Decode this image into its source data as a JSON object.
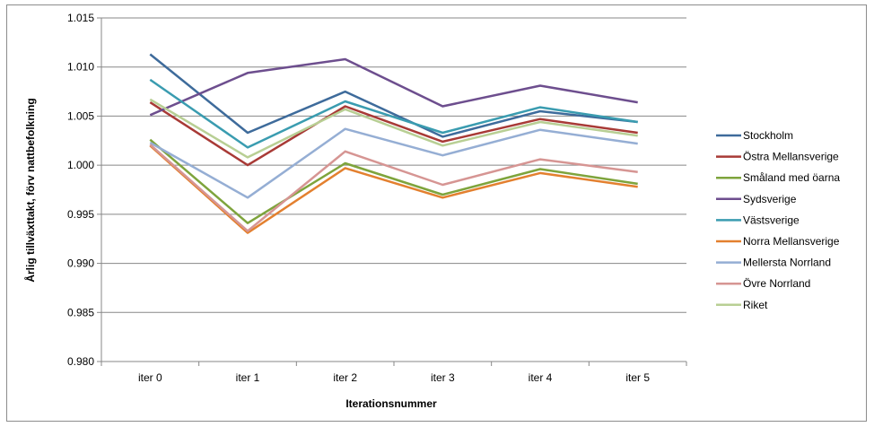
{
  "chart_data": {
    "type": "line",
    "title": "",
    "xlabel": "Iterationsnummer",
    "ylabel": "Årlig tillväxttakt, förv nattbefolkning",
    "categories": [
      "iter 0",
      "iter 1",
      "iter 2",
      "iter 3",
      "iter 4",
      "iter 5"
    ],
    "ylim": [
      0.98,
      1.015
    ],
    "yticks": [
      "0.980",
      "0.985",
      "0.990",
      "0.995",
      "1.000",
      "1.005",
      "1.010",
      "1.015"
    ],
    "grid": true,
    "legend_position": "right",
    "series": [
      {
        "name": "Stockholm",
        "color": "#3e6b9b",
        "values": [
          1.0113,
          1.0033,
          1.0075,
          1.0029,
          1.0055,
          1.0044
        ]
      },
      {
        "name": "Östra Mellansverige",
        "color": "#a83a36",
        "values": [
          1.0064,
          1.0,
          1.006,
          1.0024,
          1.0047,
          1.0033
        ]
      },
      {
        "name": "Småland med öarna",
        "color": "#7ea43c",
        "values": [
          1.0026,
          0.9941,
          1.0002,
          0.997,
          0.9996,
          0.9981
        ]
      },
      {
        "name": "Sydsverige",
        "color": "#6d4e8e",
        "values": [
          1.0051,
          1.0094,
          1.0108,
          1.006,
          1.0081,
          1.0064
        ]
      },
      {
        "name": "Västsverige",
        "color": "#3a9cb0",
        "values": [
          1.0087,
          1.0018,
          1.0065,
          1.0033,
          1.0059,
          1.0044
        ]
      },
      {
        "name": "Norra Mellansverige",
        "color": "#e3802f",
        "values": [
          1.002,
          0.9931,
          0.9997,
          0.9967,
          0.9992,
          0.9978
        ]
      },
      {
        "name": "Mellersta Norrland",
        "color": "#95aed4",
        "values": [
          1.0023,
          0.9967,
          1.0037,
          1.001,
          1.0036,
          1.0022
        ]
      },
      {
        "name": "Övre Norrland",
        "color": "#d69593",
        "values": [
          1.0021,
          0.9933,
          1.0014,
          0.998,
          1.0006,
          0.9993
        ]
      },
      {
        "name": "Riket",
        "color": "#b8cf94",
        "values": [
          1.0067,
          1.0008,
          1.0057,
          1.002,
          1.0044,
          1.003
        ]
      }
    ]
  }
}
